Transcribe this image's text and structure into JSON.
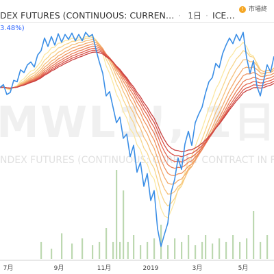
{
  "header": {
    "title": "DEX FUTURES (CONTINUOUS: CURREN…",
    "interval": "1日",
    "exchange": "ICE…",
    "status_label": "市場終"
  },
  "change_readout": "3.48%)",
  "watermark": {
    "symbol": "MWL1!, 1日",
    "description": "NDEX FUTURES (CONTINUOUS: CURRENT CONTRACT IN F"
  },
  "colors": {
    "price": "#3a8ee6",
    "volume": "#bcd8b0",
    "ribbon": [
      "#fbe7a1",
      "#f8d58a",
      "#f6c07a",
      "#f3aa6c",
      "#ef9360",
      "#ea7c57",
      "#e3654f",
      "#d95148",
      "#c9403f"
    ]
  },
  "chart_data": {
    "type": "line",
    "x_tick_labels": [
      "7月",
      "9月",
      "11月",
      "2019",
      "3月",
      "5月"
    ],
    "price": [
      {
        "x": 0,
        "y": 0.2
      },
      {
        "x": 3,
        "y": 0.24
      },
      {
        "x": 6,
        "y": 0.1
      },
      {
        "x": 9,
        "y": 0.13
      },
      {
        "x": 12,
        "y": 0.3
      },
      {
        "x": 15,
        "y": 0.28
      },
      {
        "x": 18,
        "y": 0.45
      },
      {
        "x": 21,
        "y": 0.41
      },
      {
        "x": 24,
        "y": 0.52
      },
      {
        "x": 27,
        "y": 0.56
      },
      {
        "x": 30,
        "y": 0.49
      },
      {
        "x": 33,
        "y": 0.66
      },
      {
        "x": 36,
        "y": 0.72
      },
      {
        "x": 39,
        "y": 0.9
      },
      {
        "x": 42,
        "y": 0.78
      },
      {
        "x": 45,
        "y": 0.92
      },
      {
        "x": 48,
        "y": 0.8
      },
      {
        "x": 51,
        "y": 0.96
      },
      {
        "x": 54,
        "y": 0.84
      },
      {
        "x": 57,
        "y": 0.95
      },
      {
        "x": 60,
        "y": 0.88
      },
      {
        "x": 63,
        "y": 0.97
      },
      {
        "x": 66,
        "y": 0.86
      },
      {
        "x": 69,
        "y": 0.95
      },
      {
        "x": 72,
        "y": 0.86
      },
      {
        "x": 75,
        "y": 0.98
      },
      {
        "x": 78,
        "y": 0.92
      },
      {
        "x": 81,
        "y": 0.95
      },
      {
        "x": 84,
        "y": 0.74
      },
      {
        "x": 87,
        "y": 0.56
      },
      {
        "x": 90,
        "y": 0.4
      },
      {
        "x": 93,
        "y": 0.08
      },
      {
        "x": 96,
        "y": 0.14
      },
      {
        "x": 99,
        "y": -0.08
      },
      {
        "x": 102,
        "y": -0.3
      },
      {
        "x": 105,
        "y": -0.22
      },
      {
        "x": 108,
        "y": -0.52
      },
      {
        "x": 111,
        "y": -0.46
      },
      {
        "x": 114,
        "y": -0.78
      },
      {
        "x": 117,
        "y": -0.62
      },
      {
        "x": 120,
        "y": -1.0
      },
      {
        "x": 123,
        "y": -0.86
      },
      {
        "x": 126,
        "y": -1.2
      },
      {
        "x": 129,
        "y": -1.02
      },
      {
        "x": 132,
        "y": -1.4
      },
      {
        "x": 135,
        "y": -1.26
      },
      {
        "x": 138,
        "y": -1.8
      },
      {
        "x": 141,
        "y": -2.05
      },
      {
        "x": 144,
        "y": -1.88
      },
      {
        "x": 147,
        "y": -1.72
      },
      {
        "x": 150,
        "y": -1.28
      },
      {
        "x": 153,
        "y": -1.1
      },
      {
        "x": 156,
        "y": -0.8
      },
      {
        "x": 159,
        "y": -0.96
      },
      {
        "x": 162,
        "y": -0.6
      },
      {
        "x": 165,
        "y": -0.42
      },
      {
        "x": 168,
        "y": -0.62
      },
      {
        "x": 171,
        "y": -0.3
      },
      {
        "x": 174,
        "y": -0.18
      },
      {
        "x": 177,
        "y": -0.08
      },
      {
        "x": 180,
        "y": 0.12
      },
      {
        "x": 183,
        "y": 0.28
      },
      {
        "x": 186,
        "y": 0.34
      },
      {
        "x": 189,
        "y": 0.54
      },
      {
        "x": 192,
        "y": 0.48
      },
      {
        "x": 195,
        "y": 0.68
      },
      {
        "x": 198,
        "y": 0.8
      },
      {
        "x": 201,
        "y": 0.9
      },
      {
        "x": 204,
        "y": 0.82
      },
      {
        "x": 207,
        "y": 0.95
      },
      {
        "x": 210,
        "y": 0.86
      },
      {
        "x": 213,
        "y": 0.98
      },
      {
        "x": 216,
        "y": 0.62
      },
      {
        "x": 219,
        "y": 0.4
      },
      {
        "x": 222,
        "y": 0.58
      },
      {
        "x": 225,
        "y": 0.22
      },
      {
        "x": 228,
        "y": 0.08
      },
      {
        "x": 231,
        "y": 0.3
      },
      {
        "x": 234,
        "y": 0.52
      },
      {
        "x": 237,
        "y": 0.42
      },
      {
        "x": 240,
        "y": 0.64
      }
    ],
    "ribbon_lengths": [
      6,
      9,
      12,
      15,
      18,
      21,
      24,
      27,
      30
    ],
    "volume": [
      {
        "x": 36,
        "v": 0.1
      },
      {
        "x": 45,
        "v": 0.06
      },
      {
        "x": 54,
        "v": 0.15
      },
      {
        "x": 63,
        "v": 0.09
      },
      {
        "x": 72,
        "v": 0.12
      },
      {
        "x": 81,
        "v": 0.08
      },
      {
        "x": 87,
        "v": 0.1
      },
      {
        "x": 93,
        "v": 0.18
      },
      {
        "x": 99,
        "v": 0.1
      },
      {
        "x": 102,
        "v": 0.52
      },
      {
        "x": 105,
        "v": 0.1
      },
      {
        "x": 108,
        "v": 0.4
      },
      {
        "x": 112,
        "v": 0.1
      },
      {
        "x": 117,
        "v": 0.14
      },
      {
        "x": 123,
        "v": 0.08
      },
      {
        "x": 129,
        "v": 0.1
      },
      {
        "x": 135,
        "v": 0.12
      },
      {
        "x": 141,
        "v": 0.2
      },
      {
        "x": 147,
        "v": 0.08
      },
      {
        "x": 153,
        "v": 0.12
      },
      {
        "x": 159,
        "v": 0.1
      },
      {
        "x": 165,
        "v": 0.14
      },
      {
        "x": 171,
        "v": 0.08
      },
      {
        "x": 177,
        "v": 0.1
      },
      {
        "x": 180,
        "v": 0.14
      },
      {
        "x": 186,
        "v": 0.09
      },
      {
        "x": 192,
        "v": 0.12
      },
      {
        "x": 198,
        "v": 0.1
      },
      {
        "x": 204,
        "v": 0.14
      },
      {
        "x": 210,
        "v": 0.1
      },
      {
        "x": 216,
        "v": 0.12
      },
      {
        "x": 222,
        "v": 0.28
      },
      {
        "x": 228,
        "v": 0.1
      },
      {
        "x": 234,
        "v": 0.14
      }
    ],
    "x_range": [
      0,
      240
    ],
    "y_range": [
      -2.15,
      1.05
    ],
    "volume_range": [
      0,
      0.6
    ]
  }
}
